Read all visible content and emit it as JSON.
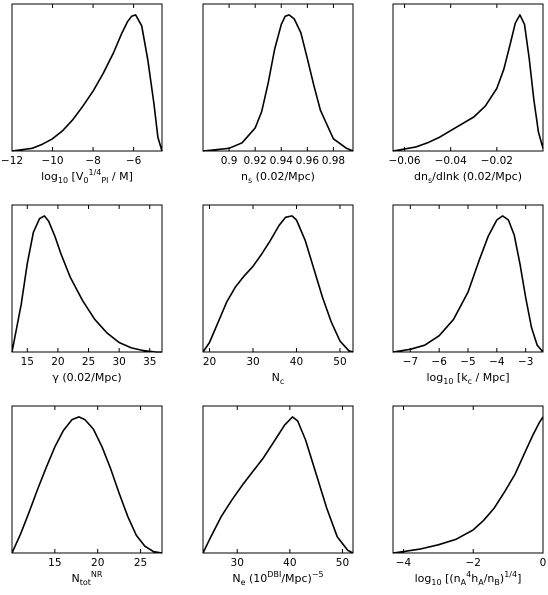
{
  "chart_data": [
    {
      "type": "line",
      "title": "",
      "xlabel": {
        "main": "log",
        "sub": "10",
        "rest": " [V",
        "sub2": "0",
        "sup": "1/4",
        "tail": " / M",
        "sub3": "Pl",
        "end": "]"
      },
      "ylabel": "",
      "xlim": [
        -12,
        -4.6
      ],
      "ylim": [
        0,
        1.08
      ],
      "xticks": [
        -12,
        -10,
        -8,
        -6
      ],
      "xtick_labels": [
        "−12",
        "−10",
        "−8",
        "−6"
      ],
      "x": [
        -12,
        -11,
        -10.5,
        -10,
        -9.5,
        -9,
        -8.5,
        -8,
        -7.5,
        -7,
        -6.6,
        -6.3,
        -6.1,
        -5.9,
        -5.6,
        -5.3,
        -5.0,
        -4.8,
        -4.6
      ],
      "y": [
        0.0,
        0.02,
        0.05,
        0.09,
        0.15,
        0.23,
        0.33,
        0.44,
        0.57,
        0.72,
        0.86,
        0.95,
        0.99,
        1.0,
        0.92,
        0.67,
        0.35,
        0.1,
        0.0
      ]
    },
    {
      "type": "line",
      "title": "",
      "xlabel": {
        "main": "n",
        "sub": "s",
        "rest": " (0.02/Mpc)"
      },
      "ylabel": "",
      "xlim": [
        0.88,
        0.995
      ],
      "ylim": [
        0,
        1.08
      ],
      "xticks": [
        0.9,
        0.92,
        0.94,
        0.96,
        0.98
      ],
      "xtick_labels": [
        "0.9",
        "0.92",
        "0.94",
        "0.96",
        "0.98"
      ],
      "x": [
        0.88,
        0.9,
        0.91,
        0.92,
        0.925,
        0.93,
        0.935,
        0.94,
        0.943,
        0.946,
        0.95,
        0.955,
        0.96,
        0.965,
        0.97,
        0.98,
        0.99,
        0.995
      ],
      "y": [
        0.0,
        0.02,
        0.06,
        0.17,
        0.29,
        0.5,
        0.75,
        0.93,
        0.99,
        1.0,
        0.97,
        0.87,
        0.68,
        0.48,
        0.3,
        0.09,
        0.02,
        0.0
      ]
    },
    {
      "type": "line",
      "title": "",
      "xlabel": {
        "main": "dn",
        "sub": "s",
        "rest": "/dlnk (0.02/Mpc)"
      },
      "ylabel": "",
      "xlim": [
        -0.065,
        0.0
      ],
      "ylim": [
        0,
        1.08
      ],
      "xticks": [
        -0.06,
        -0.04,
        -0.02
      ],
      "xtick_labels": [
        "−0.06",
        "−0.04",
        "−0.02"
      ],
      "x": [
        -0.065,
        -0.055,
        -0.05,
        -0.045,
        -0.04,
        -0.035,
        -0.03,
        -0.025,
        -0.02,
        -0.017,
        -0.014,
        -0.012,
        -0.01,
        -0.008,
        -0.006,
        -0.004,
        -0.002,
        0.0
      ],
      "y": [
        0.0,
        0.03,
        0.06,
        0.1,
        0.15,
        0.2,
        0.25,
        0.33,
        0.46,
        0.6,
        0.8,
        0.94,
        1.0,
        0.93,
        0.68,
        0.38,
        0.14,
        0.02
      ]
    },
    {
      "type": "line",
      "title": "",
      "xlabel": {
        "main": "γ (0.02/Mpc)"
      },
      "ylabel": "",
      "xlim": [
        12.5,
        37
      ],
      "ylim": [
        0,
        1.08
      ],
      "xticks": [
        15,
        20,
        25,
        30,
        35
      ],
      "xtick_labels": [
        "15",
        "20",
        "25",
        "30",
        "35"
      ],
      "x": [
        12.5,
        14,
        15,
        16,
        17,
        17.8,
        18.5,
        19.5,
        20.5,
        22,
        24,
        26,
        28,
        30,
        32,
        34,
        36,
        37
      ],
      "y": [
        0.0,
        0.35,
        0.65,
        0.88,
        0.98,
        1.0,
        0.96,
        0.85,
        0.72,
        0.55,
        0.38,
        0.24,
        0.14,
        0.07,
        0.03,
        0.01,
        0.0,
        0.0
      ]
    },
    {
      "type": "line",
      "title": "",
      "xlabel": {
        "main": "N",
        "sub": "c"
      },
      "ylabel": "",
      "xlim": [
        18.5,
        53
      ],
      "ylim": [
        0,
        1.08
      ],
      "xticks": [
        20,
        30,
        40,
        50
      ],
      "xtick_labels": [
        "20",
        "30",
        "40",
        "50"
      ],
      "x": [
        18.5,
        20,
        22,
        24,
        26,
        28,
        30,
        32,
        34,
        36,
        37.5,
        39,
        40,
        42,
        44,
        46,
        48,
        50,
        52,
        53
      ],
      "y": [
        0.0,
        0.07,
        0.22,
        0.37,
        0.48,
        0.56,
        0.63,
        0.72,
        0.82,
        0.93,
        0.99,
        1.0,
        0.97,
        0.82,
        0.61,
        0.4,
        0.22,
        0.08,
        0.01,
        0.0
      ]
    },
    {
      "type": "line",
      "title": "",
      "xlabel": {
        "main": "log",
        "sub": "10",
        "rest": " [k",
        "sub2": "c",
        "tail": " / Mpc]"
      },
      "ylabel": "",
      "xlim": [
        -7.6,
        -2.4
      ],
      "ylim": [
        0,
        1.08
      ],
      "xticks": [
        -7,
        -6,
        -5,
        -4,
        -3
      ],
      "xtick_labels": [
        "−7",
        "−6",
        "−5",
        "−4",
        "−3"
      ],
      "x": [
        -7.6,
        -7,
        -6.5,
        -6,
        -5.5,
        -5,
        -4.6,
        -4.3,
        -4,
        -3.8,
        -3.6,
        -3.4,
        -3.2,
        -3,
        -2.8,
        -2.6,
        -2.4
      ],
      "y": [
        0.0,
        0.02,
        0.05,
        0.12,
        0.24,
        0.44,
        0.68,
        0.85,
        0.97,
        1.0,
        0.97,
        0.86,
        0.65,
        0.4,
        0.18,
        0.05,
        0.0
      ]
    },
    {
      "type": "line",
      "title": "",
      "xlabel": {
        "main": "N",
        "sub": "tot",
        "sup": "NR"
      },
      "ylabel": "",
      "xlim": [
        10,
        27.5
      ],
      "ylim": [
        0,
        1.08
      ],
      "xticks": [
        15,
        20,
        25
      ],
      "xtick_labels": [
        "15",
        "20",
        "25"
      ],
      "x": [
        10,
        11,
        12,
        13,
        14,
        15,
        16,
        17,
        17.8,
        18.5,
        19.5,
        20.5,
        21.5,
        22.5,
        23.5,
        24.5,
        25.5,
        26.5,
        27.5
      ],
      "y": [
        0.0,
        0.14,
        0.3,
        0.47,
        0.63,
        0.78,
        0.9,
        0.98,
        1.0,
        0.98,
        0.91,
        0.78,
        0.62,
        0.44,
        0.27,
        0.13,
        0.05,
        0.01,
        0.0
      ]
    },
    {
      "type": "line",
      "title": "",
      "xlabel": {
        "main": "N",
        "sub": "e",
        "sup": "DBI",
        "rest": " (10",
        "sup2": "−5",
        "tail": "/Mpc)"
      },
      "ylabel": "",
      "xlim": [
        23.5,
        52
      ],
      "ylim": [
        0,
        1.08
      ],
      "xticks": [
        30,
        40,
        50
      ],
      "xtick_labels": [
        "30",
        "40",
        "50"
      ],
      "x": [
        23.5,
        25,
        27,
        29,
        31,
        33,
        35,
        37,
        39,
        40.5,
        41.5,
        43,
        45,
        47,
        49,
        51,
        52
      ],
      "y": [
        0.0,
        0.12,
        0.27,
        0.39,
        0.5,
        0.6,
        0.7,
        0.82,
        0.94,
        1.0,
        0.97,
        0.83,
        0.58,
        0.33,
        0.12,
        0.02,
        0.0
      ]
    },
    {
      "type": "line",
      "title": "",
      "xlabel": {
        "main": "log",
        "sub": "10",
        "rest": " [(n",
        "sub2": "A",
        "rest2": "h",
        "sup": "4",
        "sub3": "A",
        "tail": "/n",
        "sub4": "B",
        "end": ")",
        "sup2": "1/4",
        "end2": "]"
      },
      "ylabel": "",
      "xlim": [
        -4.3,
        0
      ],
      "ylim": [
        0,
        1.08
      ],
      "xticks": [
        -4,
        -2,
        0
      ],
      "xtick_labels": [
        "−4",
        "−2",
        "0"
      ],
      "x": [
        -4.3,
        -4,
        -3.5,
        -3,
        -2.5,
        -2,
        -1.7,
        -1.4,
        -1.1,
        -0.8,
        -0.5,
        -0.3,
        -0.1,
        0.0
      ],
      "y": [
        0.0,
        0.01,
        0.03,
        0.06,
        0.1,
        0.17,
        0.24,
        0.33,
        0.45,
        0.58,
        0.75,
        0.86,
        0.96,
        1.0
      ]
    }
  ]
}
